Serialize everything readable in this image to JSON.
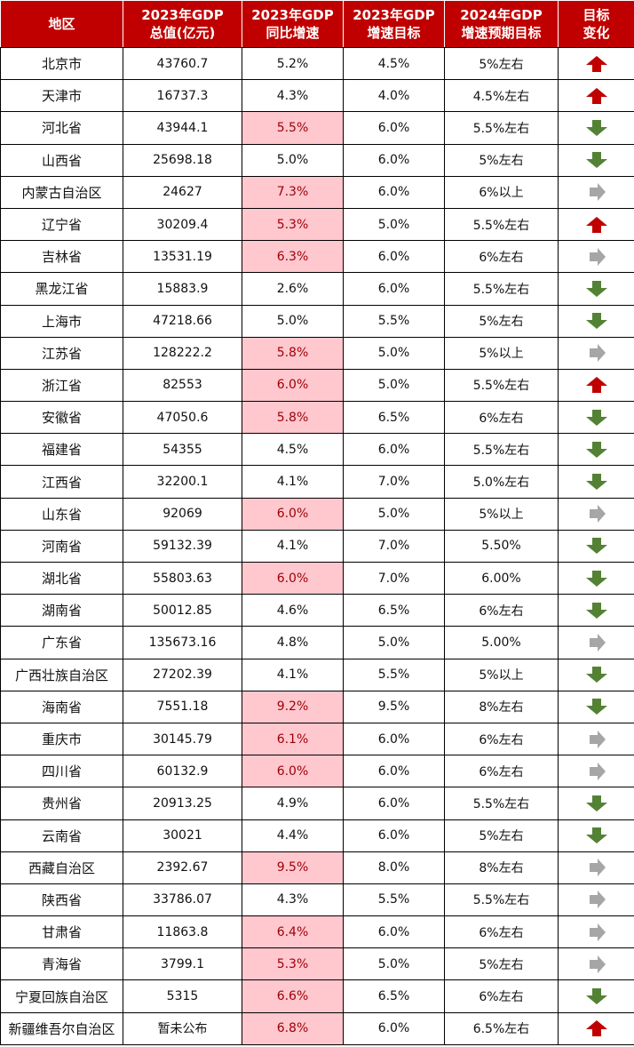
{
  "colors": {
    "header_bg": "#c00000",
    "header_text": "#ffffff",
    "highlight_bg": "#ffc7ce",
    "highlight_text": "#9c0006",
    "arrow_up": "#c00000",
    "arrow_down": "#548235",
    "arrow_right": "#a6a6a6"
  },
  "headers": [
    [
      "地区"
    ],
    [
      "2023年GDP",
      "总值(亿元)"
    ],
    [
      "2023年GDP",
      "同比增速"
    ],
    [
      "2023年GDP",
      "增速目标"
    ],
    [
      "2024年GDP",
      "增速预期目标"
    ],
    [
      "目标",
      "变化"
    ]
  ],
  "rows": [
    {
      "region": "北京市",
      "gdp": "43760.7",
      "growth": "5.2%",
      "highlight": false,
      "target_2023": "4.5%",
      "target_2024": "5%左右",
      "change": "up"
    },
    {
      "region": "天津市",
      "gdp": "16737.3",
      "growth": "4.3%",
      "highlight": false,
      "target_2023": "4.0%",
      "target_2024": "4.5%左右",
      "change": "up"
    },
    {
      "region": "河北省",
      "gdp": "43944.1",
      "growth": "5.5%",
      "highlight": true,
      "target_2023": "6.0%",
      "target_2024": "5.5%左右",
      "change": "down"
    },
    {
      "region": "山西省",
      "gdp": "25698.18",
      "growth": "5.0%",
      "highlight": false,
      "target_2023": "6.0%",
      "target_2024": "5%左右",
      "change": "down"
    },
    {
      "region": "内蒙古自治区",
      "gdp": "24627",
      "growth": "7.3%",
      "highlight": true,
      "target_2023": "6.0%",
      "target_2024": "6%以上",
      "change": "same"
    },
    {
      "region": "辽宁省",
      "gdp": "30209.4",
      "growth": "5.3%",
      "highlight": true,
      "target_2023": "5.0%",
      "target_2024": "5.5%左右",
      "change": "up"
    },
    {
      "region": "吉林省",
      "gdp": "13531.19",
      "growth": "6.3%",
      "highlight": true,
      "target_2023": "6.0%",
      "target_2024": "6%左右",
      "change": "same"
    },
    {
      "region": "黑龙江省",
      "gdp": "15883.9",
      "growth": "2.6%",
      "highlight": false,
      "target_2023": "6.0%",
      "target_2024": "5.5%左右",
      "change": "down"
    },
    {
      "region": "上海市",
      "gdp": "47218.66",
      "growth": "5.0%",
      "highlight": false,
      "target_2023": "5.5%",
      "target_2024": "5%左右",
      "change": "down"
    },
    {
      "region": "江苏省",
      "gdp": "128222.2",
      "growth": "5.8%",
      "highlight": true,
      "target_2023": "5.0%",
      "target_2024": "5%以上",
      "change": "same"
    },
    {
      "region": "浙江省",
      "gdp": "82553",
      "growth": "6.0%",
      "highlight": true,
      "target_2023": "5.0%",
      "target_2024": "5.5%左右",
      "change": "up"
    },
    {
      "region": "安徽省",
      "gdp": "47050.6",
      "growth": "5.8%",
      "highlight": true,
      "target_2023": "6.5%",
      "target_2024": "6%左右",
      "change": "down"
    },
    {
      "region": "福建省",
      "gdp": "54355",
      "growth": "4.5%",
      "highlight": false,
      "target_2023": "6.0%",
      "target_2024": "5.5%左右",
      "change": "down"
    },
    {
      "region": "江西省",
      "gdp": "32200.1",
      "growth": "4.1%",
      "highlight": false,
      "target_2023": "7.0%",
      "target_2024": "5.0%左右",
      "change": "down"
    },
    {
      "region": "山东省",
      "gdp": "92069",
      "growth": "6.0%",
      "highlight": true,
      "target_2023": "5.0%",
      "target_2024": "5%以上",
      "change": "same"
    },
    {
      "region": "河南省",
      "gdp": "59132.39",
      "growth": "4.1%",
      "highlight": false,
      "target_2023": "7.0%",
      "target_2024": "5.50%",
      "change": "down"
    },
    {
      "region": "湖北省",
      "gdp": "55803.63",
      "growth": "6.0%",
      "highlight": true,
      "target_2023": "7.0%",
      "target_2024": "6.00%",
      "change": "down"
    },
    {
      "region": "湖南省",
      "gdp": "50012.85",
      "growth": "4.6%",
      "highlight": false,
      "target_2023": "6.5%",
      "target_2024": "6%左右",
      "change": "down"
    },
    {
      "region": "广东省",
      "gdp": "135673.16",
      "growth": "4.8%",
      "highlight": false,
      "target_2023": "5.0%",
      "target_2024": "5.00%",
      "change": "same"
    },
    {
      "region": "广西壮族自治区",
      "gdp": "27202.39",
      "growth": "4.1%",
      "highlight": false,
      "target_2023": "5.5%",
      "target_2024": "5%以上",
      "change": "down"
    },
    {
      "region": "海南省",
      "gdp": "7551.18",
      "growth": "9.2%",
      "highlight": true,
      "target_2023": "9.5%",
      "target_2024": "8%左右",
      "change": "down"
    },
    {
      "region": "重庆市",
      "gdp": "30145.79",
      "growth": "6.1%",
      "highlight": true,
      "target_2023": "6.0%",
      "target_2024": "6%左右",
      "change": "same"
    },
    {
      "region": "四川省",
      "gdp": "60132.9",
      "growth": "6.0%",
      "highlight": true,
      "target_2023": "6.0%",
      "target_2024": "6%左右",
      "change": "same"
    },
    {
      "region": "贵州省",
      "gdp": "20913.25",
      "growth": "4.9%",
      "highlight": false,
      "target_2023": "6.0%",
      "target_2024": "5.5%左右",
      "change": "down"
    },
    {
      "region": "云南省",
      "gdp": "30021",
      "growth": "4.4%",
      "highlight": false,
      "target_2023": "6.0%",
      "target_2024": "5%左右",
      "change": "down"
    },
    {
      "region": "西藏自治区",
      "gdp": "2392.67",
      "growth": "9.5%",
      "highlight": true,
      "target_2023": "8.0%",
      "target_2024": "8%左右",
      "change": "same"
    },
    {
      "region": "陕西省",
      "gdp": "33786.07",
      "growth": "4.3%",
      "highlight": false,
      "target_2023": "5.5%",
      "target_2024": "5.5%左右",
      "change": "same"
    },
    {
      "region": "甘肃省",
      "gdp": "11863.8",
      "growth": "6.4%",
      "highlight": true,
      "target_2023": "6.0%",
      "target_2024": "6%左右",
      "change": "same"
    },
    {
      "region": "青海省",
      "gdp": "3799.1",
      "growth": "5.3%",
      "highlight": true,
      "target_2023": "5.0%",
      "target_2024": "5%左右",
      "change": "same"
    },
    {
      "region": "宁夏回族自治区",
      "gdp": "5315",
      "growth": "6.6%",
      "highlight": true,
      "target_2023": "6.5%",
      "target_2024": "6%左右",
      "change": "down"
    },
    {
      "region": "新疆维吾尔自治区",
      "gdp": "暂未公布",
      "growth": "6.8%",
      "highlight": true,
      "target_2023": "6.0%",
      "target_2024": "6.5%左右",
      "change": "up"
    }
  ]
}
